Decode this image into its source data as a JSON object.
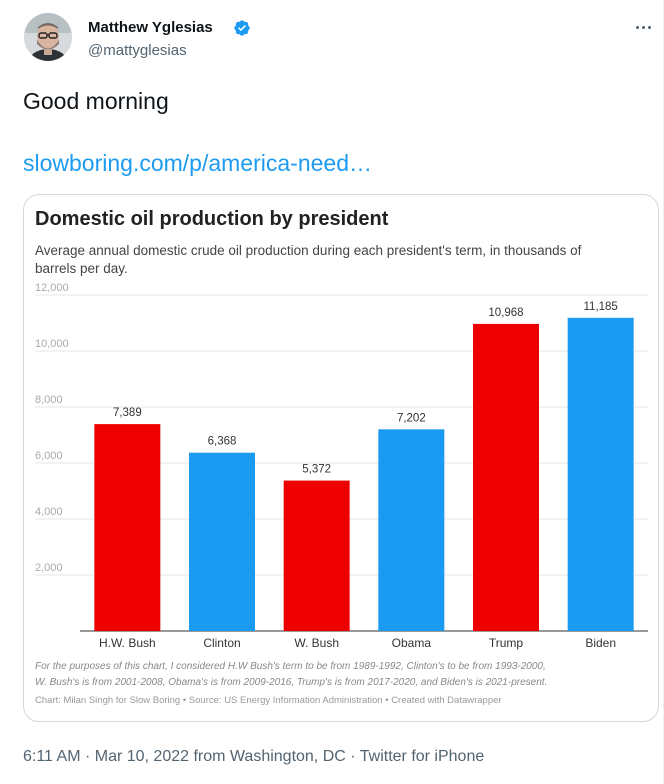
{
  "author": {
    "name": "Matthew Yglesias",
    "handle": "@mattyglesias",
    "verified_color": "#1d9bf0"
  },
  "icons": {
    "avatar": "avatar-photo",
    "verified": "verified-badge-icon",
    "more": "more-horizontal-icon"
  },
  "tweet": {
    "text": "Good morning",
    "link": "slowboring.com/p/america-need…"
  },
  "footer": {
    "time": "6:11 AM",
    "sep1": " · ",
    "date": "Mar 10, 2022 from Washington, DC",
    "sep2": " · ",
    "source": "Twitter for iPhone"
  },
  "chart_data": {
    "type": "bar",
    "title": "Domestic oil production by president",
    "subtitle_line1": "Average annual domestic crude oil production during each president's term, in thousands of",
    "subtitle_line2": "barrels per day.",
    "categories": [
      "H.W. Bush",
      "Clinton",
      "W. Bush",
      "Obama",
      "Trump",
      "Biden"
    ],
    "values": [
      7389,
      6368,
      5372,
      7202,
      10968,
      11185
    ],
    "value_labels": [
      "7,389",
      "6,368",
      "5,372",
      "7,202",
      "10,968",
      "11,185"
    ],
    "bar_colors": [
      "#ee0000",
      "#1a9af1",
      "#ee0000",
      "#1a9af1",
      "#ee0000",
      "#1a9af1"
    ],
    "ylim": [
      0,
      12000
    ],
    "yticks": [
      2000,
      4000,
      6000,
      8000,
      10000,
      12000
    ],
    "ytick_labels": [
      "2,000",
      "4,000",
      "6,000",
      "8,000",
      "10,000",
      "12,000"
    ],
    "xlabel": "",
    "ylabel": "",
    "grid": true,
    "legend": "none",
    "note_line1": "For the purposes of this chart, I considered H.W Bush's term to be from 1989-1992, Clinton's to be from 1993-2000,",
    "note_line2": "W. Bush's is from 2001-2008, Obama's is from 2009-2016, Trump's is from 2017-2020, and Biden's is 2021-present.",
    "credit": "Chart: Milan Singh for Slow Boring • Source: US Energy Information Administration • Created with Datawrapper"
  }
}
